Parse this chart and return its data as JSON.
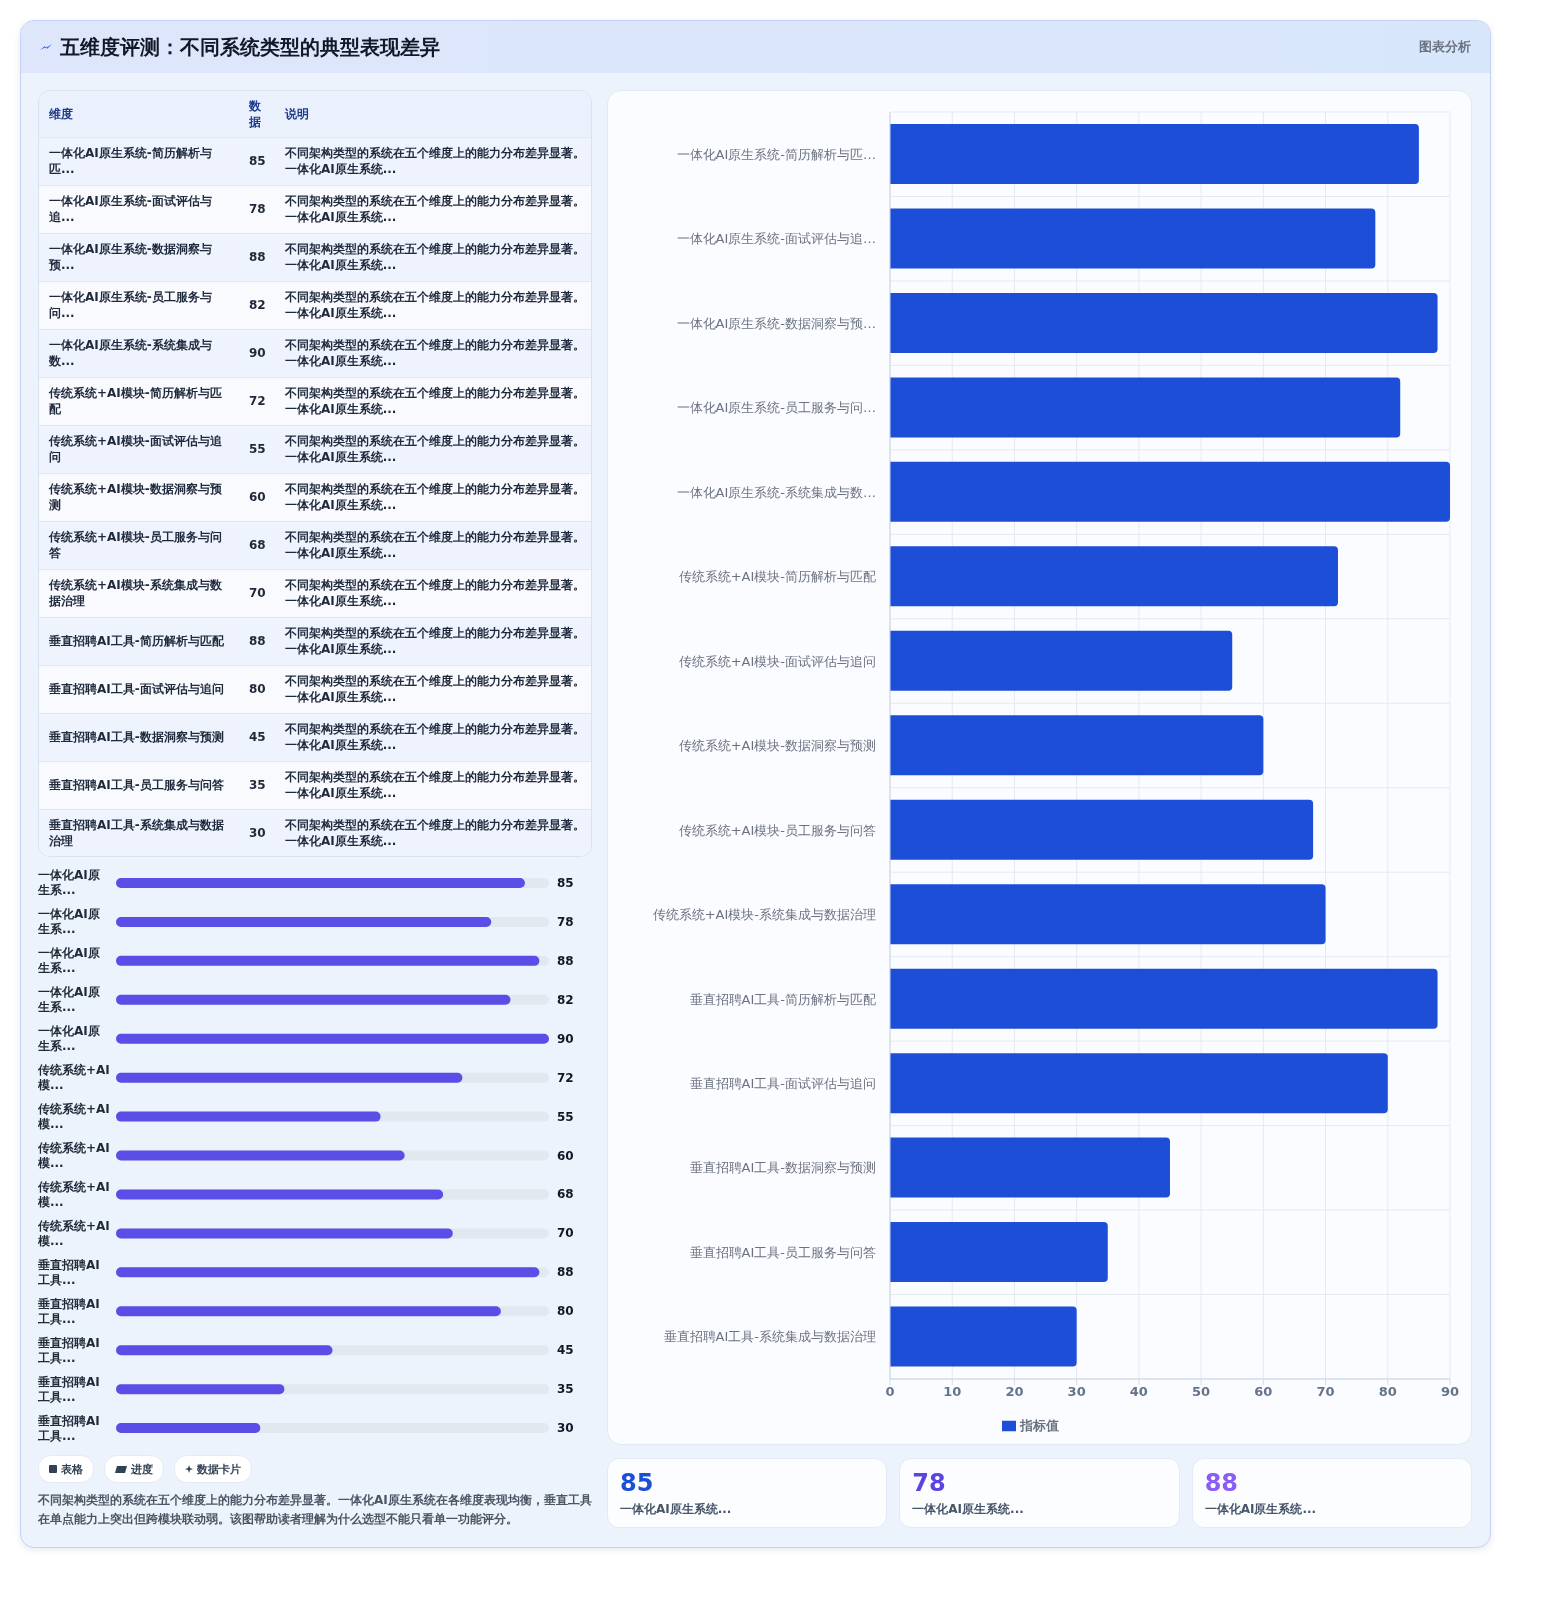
{
  "chart_data": [
    {
      "type": "other",
      "title": "五维度评测：不同系统类型的典型表现差异",
      "categories": [
        "一体化AI原生系统-简历解析与匹...",
        "一体化AI原生系统-面试评估与追...",
        "一体化AI原生系统-数据洞察与预...",
        "一体化AI原生系统-员工服务与问...",
        "一体化AI原生系统-系统集成与数...",
        "传统系统+AI模块-简历解析与匹配",
        "传统系统+AI模块-面试评估与追问",
        "传统系统+AI模块-数据洞察与预测",
        "传统系统+AI模块-员工服务与问答",
        "传统系统+AI模块-系统集成与数据治理",
        "垂直招聘AI工具-简历解析与匹配",
        "垂直招聘AI工具-面试评估与追问",
        "垂直招聘AI工具-数据洞察与预测",
        "垂直招聘AI工具-员工服务与问答",
        "垂直招聘AI工具-系统集成与数据治理"
      ],
      "annotations": [
        "维度",
        "数据",
        "说明",
        "85",
        "78",
        "88",
        "82",
        "90",
        "72",
        "55",
        "60",
        "68",
        "70",
        "88",
        "80",
        "45",
        "35",
        "30",
        "不同架构类型的系统在五个维度上的能力分布差异显著。一体化AI原生系统..."
      ]
    },
    {
      "type": "bar",
      "orientation": "horizontal",
      "categories": [
        "一体化AI原生系...",
        "一体化AI原生系...",
        "一体化AI原生系...",
        "一体化AI原生系...",
        "一体化AI原生系...",
        "传统系统+AI模...",
        "传统系统+AI模...",
        "传统系统+AI模...",
        "传统系统+AI模...",
        "传统系统+AI模...",
        "垂直招聘AI工具...",
        "垂直招聘AI工具...",
        "垂直招聘AI工具...",
        "垂直招聘AI工具...",
        "垂直招聘AI工具..."
      ],
      "values": [
        85,
        78,
        88,
        82,
        90,
        72,
        55,
        60,
        68,
        70,
        88,
        80,
        45,
        35,
        30
      ],
      "color": "#5b4ee6",
      "tick_labels": "y",
      "data_labels": true,
      "annotations": [
        "表格",
        "进度",
        "数据卡片",
        "不同架构类型的系统在五个维度上的能力分布差异显著。一体化AI原生系统在各维度表现均衡，垂直工具在单点能力上突出但跨模块联动弱。该图帮助读者理解为什么选型不能只看单一功能评分。"
      ]
    },
    {
      "type": "bar",
      "orientation": "horizontal",
      "subtitle": "图表分析",
      "categories": [
        "一体化AI原生系统-简历解析与匹…",
        "一体化AI原生系统-面试评估与追…",
        "一体化AI原生系统-数据洞察与预…",
        "一体化AI原生系统-员工服务与问…",
        "一体化AI原生系统-系统集成与数…",
        "传统系统+AI模块-简历解析与匹配",
        "传统系统+AI模块-面试评估与追问",
        "传统系统+AI模块-数据洞察与预测",
        "传统系统+AI模块-员工服务与问答",
        "传统系统+AI模块-系统集成与数据治理",
        "垂直招聘AI工具-简历解析与匹配",
        "垂直招聘AI工具-面试评估与追问",
        "垂直招聘AI工具-数据洞察与预测",
        "垂直招聘AI工具-员工服务与问答",
        "垂直招聘AI工具-系统集成与数据治理"
      ],
      "series": [
        {
          "name": "指标值",
          "color": "#1d4ed8",
          "values": [
            85,
            78,
            88,
            82,
            90,
            72,
            55,
            60,
            68,
            70,
            88,
            80,
            45,
            35,
            30
          ]
        }
      ],
      "xlim": [
        0,
        90
      ],
      "xticks": [
        0,
        10,
        20,
        30,
        40,
        50,
        60,
        70,
        80,
        90
      ],
      "grid": true,
      "legend": "bottom"
    },
    {
      "type": "other",
      "annotations": [
        "85",
        "一体化AI原生系统...",
        "78",
        "一体化AI原生系统...",
        "88",
        "一体化AI原生系统..."
      ]
    }
  ]
}
